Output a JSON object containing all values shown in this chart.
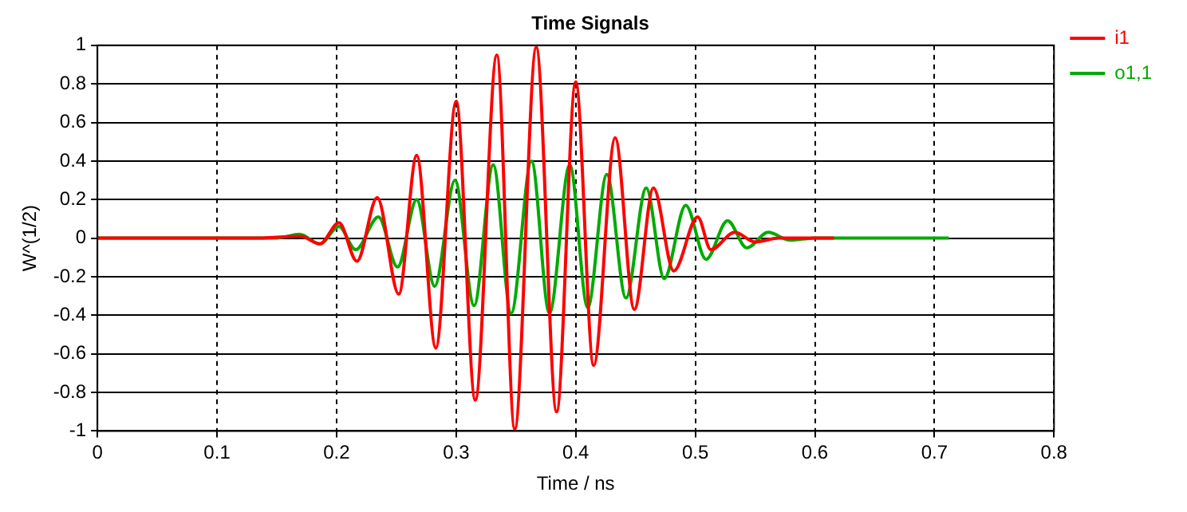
{
  "chart_data": {
    "type": "line",
    "title": "Time Signals",
    "xlabel": "Time / ns",
    "ylabel": "W^(1/2)",
    "xlim": [
      0,
      0.8
    ],
    "xticks": [
      0,
      0.1,
      0.2,
      0.3,
      0.4,
      0.5,
      0.6,
      0.7,
      0.8
    ],
    "ylim": [
      -1,
      1
    ],
    "yticks": [
      -1,
      -0.8,
      -0.6,
      -0.4,
      -0.2,
      0,
      0.2,
      0.4,
      0.6,
      0.8,
      1
    ],
    "grid": true,
    "legend": "top right",
    "marker": "none",
    "line_style": "solid",
    "series": [
      {
        "name": "i1",
        "color": "#ff0000",
        "x": [
          0,
          0.13,
          0.17,
          0.186,
          0.202,
          0.217,
          0.234,
          0.252,
          0.267,
          0.283,
          0.3,
          0.316,
          0.334,
          0.349,
          0.367,
          0.384,
          0.4,
          0.415,
          0.433,
          0.449,
          0.465,
          0.482,
          0.502,
          0.513,
          0.533,
          0.55,
          0.57,
          0.6,
          0.616
        ],
        "values": [
          0,
          0,
          0.01,
          -0.03,
          0.08,
          -0.12,
          0.21,
          -0.29,
          0.43,
          -0.57,
          0.71,
          -0.84,
          0.95,
          -0.99,
          0.99,
          -0.9,
          0.81,
          -0.66,
          0.52,
          -0.37,
          0.26,
          -0.17,
          0.11,
          -0.06,
          0.03,
          -0.02,
          0,
          0,
          0
        ]
      },
      {
        "name": "o1,1",
        "color": "#00aa00",
        "x": [
          0,
          0.15,
          0.169,
          0.186,
          0.202,
          0.216,
          0.235,
          0.251,
          0.267,
          0.282,
          0.299,
          0.315,
          0.331,
          0.346,
          0.363,
          0.378,
          0.395,
          0.41,
          0.426,
          0.442,
          0.459,
          0.474,
          0.492,
          0.509,
          0.527,
          0.543,
          0.561,
          0.579,
          0.6,
          0.712
        ],
        "values": [
          0,
          0,
          0.02,
          -0.03,
          0.06,
          -0.06,
          0.11,
          -0.15,
          0.2,
          -0.25,
          0.3,
          -0.35,
          0.38,
          -0.39,
          0.4,
          -0.39,
          0.38,
          -0.36,
          0.33,
          -0.31,
          0.26,
          -0.21,
          0.17,
          -0.11,
          0.09,
          -0.05,
          0.03,
          -0.01,
          0,
          0
        ]
      }
    ]
  }
}
